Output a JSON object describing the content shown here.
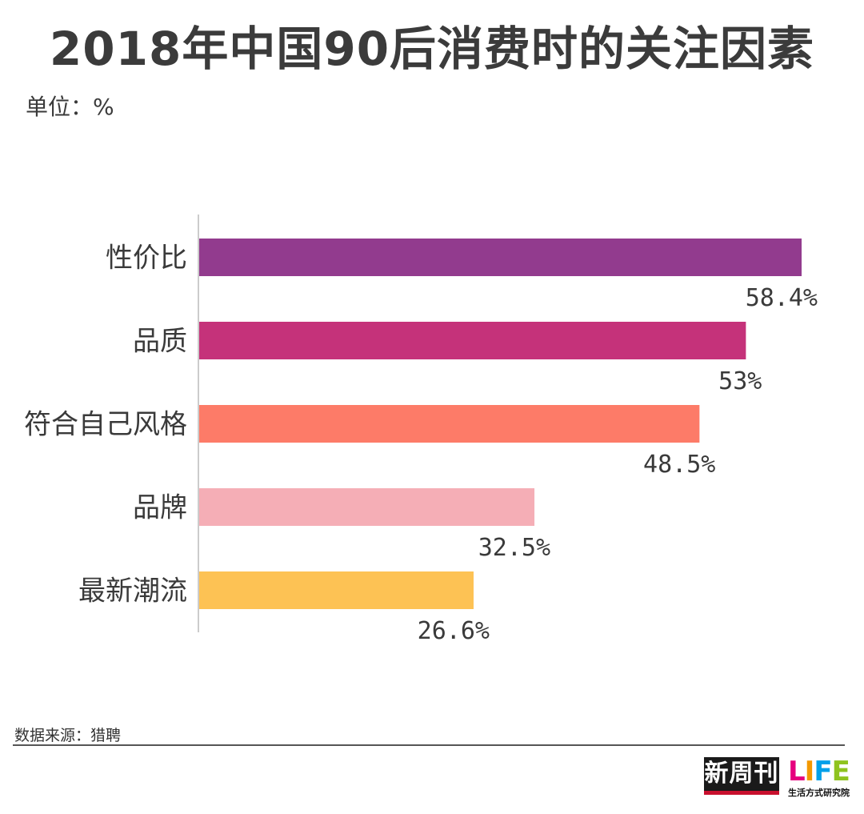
{
  "title": "2018年中国90后消费时的关注因素",
  "unit": "单位：%",
  "source": "数据来源：猎聘",
  "logos": {
    "left": "新周刊",
    "right_main": "LIFE",
    "right_sub": "生活方式研究院"
  },
  "chart_data": {
    "type": "bar",
    "orientation": "horizontal",
    "title": "2018年中国90后消费时的关注因素",
    "unit": "%",
    "categories": [
      "性价比",
      "品质",
      "符合自己风格",
      "品牌",
      "最新潮流"
    ],
    "values": [
      58.4,
      53,
      48.5,
      32.5,
      26.6
    ],
    "value_labels": [
      "58.4%",
      "53%",
      "48.5%",
      "32.5%",
      "26.6%"
    ],
    "colors": [
      "#923b8e",
      "#c5327a",
      "#fd7b68",
      "#f5aeb6",
      "#fdc254"
    ],
    "xlim": [
      0,
      58.4
    ],
    "grid": false,
    "legend": "none"
  }
}
